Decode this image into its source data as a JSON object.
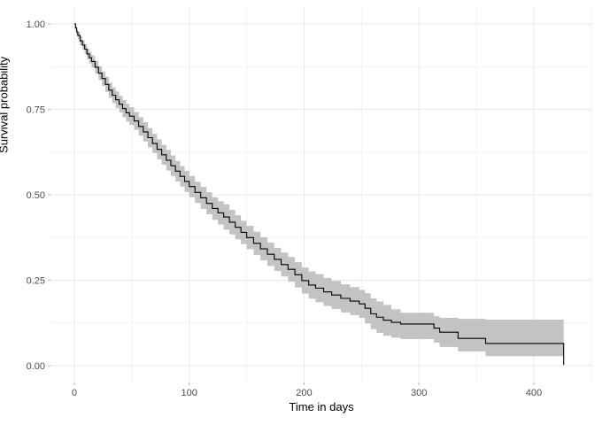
{
  "chart_data": {
    "type": "line",
    "subtype": "kaplan-meier-step-with-confidence-band",
    "title": "",
    "xlabel": "Time in days",
    "ylabel": "Survival probability",
    "legend": "none",
    "grid": true,
    "xlim": [
      -20.8,
      450.9
    ],
    "ylim": [
      -0.049,
      1.049
    ],
    "x_tick_values": [
      0,
      100,
      200,
      300,
      400
    ],
    "x_tick_labels": [
      "0",
      "100",
      "200",
      "300",
      "400"
    ],
    "x_minor_values": [
      50,
      150,
      250,
      350,
      450
    ],
    "y_tick_values": [
      0,
      0.25,
      0.5,
      0.75,
      1
    ],
    "y_tick_labels": [
      "0.00",
      "0.25",
      "0.50",
      "0.75",
      "1.00"
    ],
    "y_minor_values": [
      0.125,
      0.375,
      0.625,
      0.875
    ],
    "series": [
      {
        "name": "survival",
        "line_color": "#000000",
        "band_color": "#c3c3c3",
        "points_format": [
          "time",
          "surv",
          "lower",
          "upper"
        ],
        "points": [
          [
            0,
            1.0,
            1.0,
            1.0
          ],
          [
            1,
            0.988,
            0.981,
            0.995
          ],
          [
            2,
            0.976,
            0.967,
            0.985
          ],
          [
            3,
            0.966,
            0.955,
            0.977
          ],
          [
            5,
            0.95,
            0.937,
            0.963
          ],
          [
            7,
            0.938,
            0.924,
            0.952
          ],
          [
            9,
            0.926,
            0.911,
            0.941
          ],
          [
            11,
            0.912,
            0.896,
            0.928
          ],
          [
            13,
            0.901,
            0.884,
            0.918
          ],
          [
            15,
            0.89,
            0.872,
            0.908
          ],
          [
            18,
            0.873,
            0.854,
            0.892
          ],
          [
            21,
            0.856,
            0.836,
            0.876
          ],
          [
            24,
            0.84,
            0.819,
            0.861
          ],
          [
            27,
            0.823,
            0.801,
            0.845
          ],
          [
            30,
            0.806,
            0.784,
            0.828
          ],
          [
            33,
            0.791,
            0.768,
            0.814
          ],
          [
            36,
            0.778,
            0.754,
            0.802
          ],
          [
            39,
            0.765,
            0.741,
            0.789
          ],
          [
            42,
            0.752,
            0.727,
            0.777
          ],
          [
            45,
            0.74,
            0.714,
            0.766
          ],
          [
            48,
            0.73,
            0.704,
            0.756
          ],
          [
            52,
            0.716,
            0.69,
            0.742
          ],
          [
            56,
            0.7,
            0.673,
            0.727
          ],
          [
            60,
            0.684,
            0.656,
            0.712
          ],
          [
            64,
            0.667,
            0.639,
            0.695
          ],
          [
            68,
            0.65,
            0.622,
            0.678
          ],
          [
            72,
            0.633,
            0.604,
            0.662
          ],
          [
            76,
            0.617,
            0.588,
            0.646
          ],
          [
            80,
            0.601,
            0.571,
            0.631
          ],
          [
            84,
            0.585,
            0.555,
            0.615
          ],
          [
            88,
            0.569,
            0.539,
            0.599
          ],
          [
            92,
            0.554,
            0.524,
            0.584
          ],
          [
            96,
            0.539,
            0.508,
            0.57
          ],
          [
            100,
            0.524,
            0.493,
            0.555
          ],
          [
            105,
            0.507,
            0.476,
            0.538
          ],
          [
            110,
            0.491,
            0.459,
            0.523
          ],
          [
            115,
            0.475,
            0.443,
            0.507
          ],
          [
            120,
            0.46,
            0.427,
            0.493
          ],
          [
            125,
            0.447,
            0.413,
            0.481
          ],
          [
            130,
            0.435,
            0.398,
            0.472
          ],
          [
            135,
            0.42,
            0.384,
            0.456
          ],
          [
            140,
            0.405,
            0.37,
            0.44
          ],
          [
            145,
            0.39,
            0.356,
            0.424
          ],
          [
            150,
            0.375,
            0.341,
            0.409
          ],
          [
            156,
            0.358,
            0.324,
            0.392
          ],
          [
            162,
            0.342,
            0.308,
            0.376
          ],
          [
            168,
            0.326,
            0.292,
            0.36
          ],
          [
            174,
            0.311,
            0.277,
            0.345
          ],
          [
            180,
            0.296,
            0.261,
            0.331
          ],
          [
            186,
            0.282,
            0.246,
            0.318
          ],
          [
            192,
            0.266,
            0.229,
            0.303
          ],
          [
            198,
            0.249,
            0.211,
            0.287
          ],
          [
            204,
            0.236,
            0.196,
            0.276
          ],
          [
            210,
            0.227,
            0.186,
            0.268
          ],
          [
            217,
            0.216,
            0.175,
            0.257
          ],
          [
            224,
            0.207,
            0.166,
            0.248
          ],
          [
            232,
            0.197,
            0.156,
            0.238
          ],
          [
            240,
            0.189,
            0.148,
            0.23
          ],
          [
            248,
            0.181,
            0.14,
            0.222
          ],
          [
            253,
            0.168,
            0.124,
            0.212
          ],
          [
            258,
            0.152,
            0.107,
            0.197
          ],
          [
            263,
            0.142,
            0.096,
            0.188
          ],
          [
            269,
            0.133,
            0.088,
            0.178
          ],
          [
            276,
            0.127,
            0.082,
            0.165
          ],
          [
            284,
            0.122,
            0.078,
            0.155
          ],
          [
            313,
            0.11,
            0.068,
            0.145
          ],
          [
            318,
            0.098,
            0.055,
            0.14
          ],
          [
            334,
            0.08,
            0.042,
            0.137
          ],
          [
            358,
            0.065,
            0.028,
            0.135
          ],
          [
            426,
            0.002,
            0.002,
            0.002
          ]
        ]
      }
    ],
    "colors": {
      "background": "#ffffff",
      "panel_background": "#ffffff",
      "grid_major": "#e9e9e9",
      "grid_minor": "#f3f3f3",
      "tick_mark": "#b3b3b3",
      "tick_label": "#4d4d4d",
      "axis_title": "#000000",
      "curve": "#000000",
      "confidence_band": "#c3c3c3"
    }
  }
}
